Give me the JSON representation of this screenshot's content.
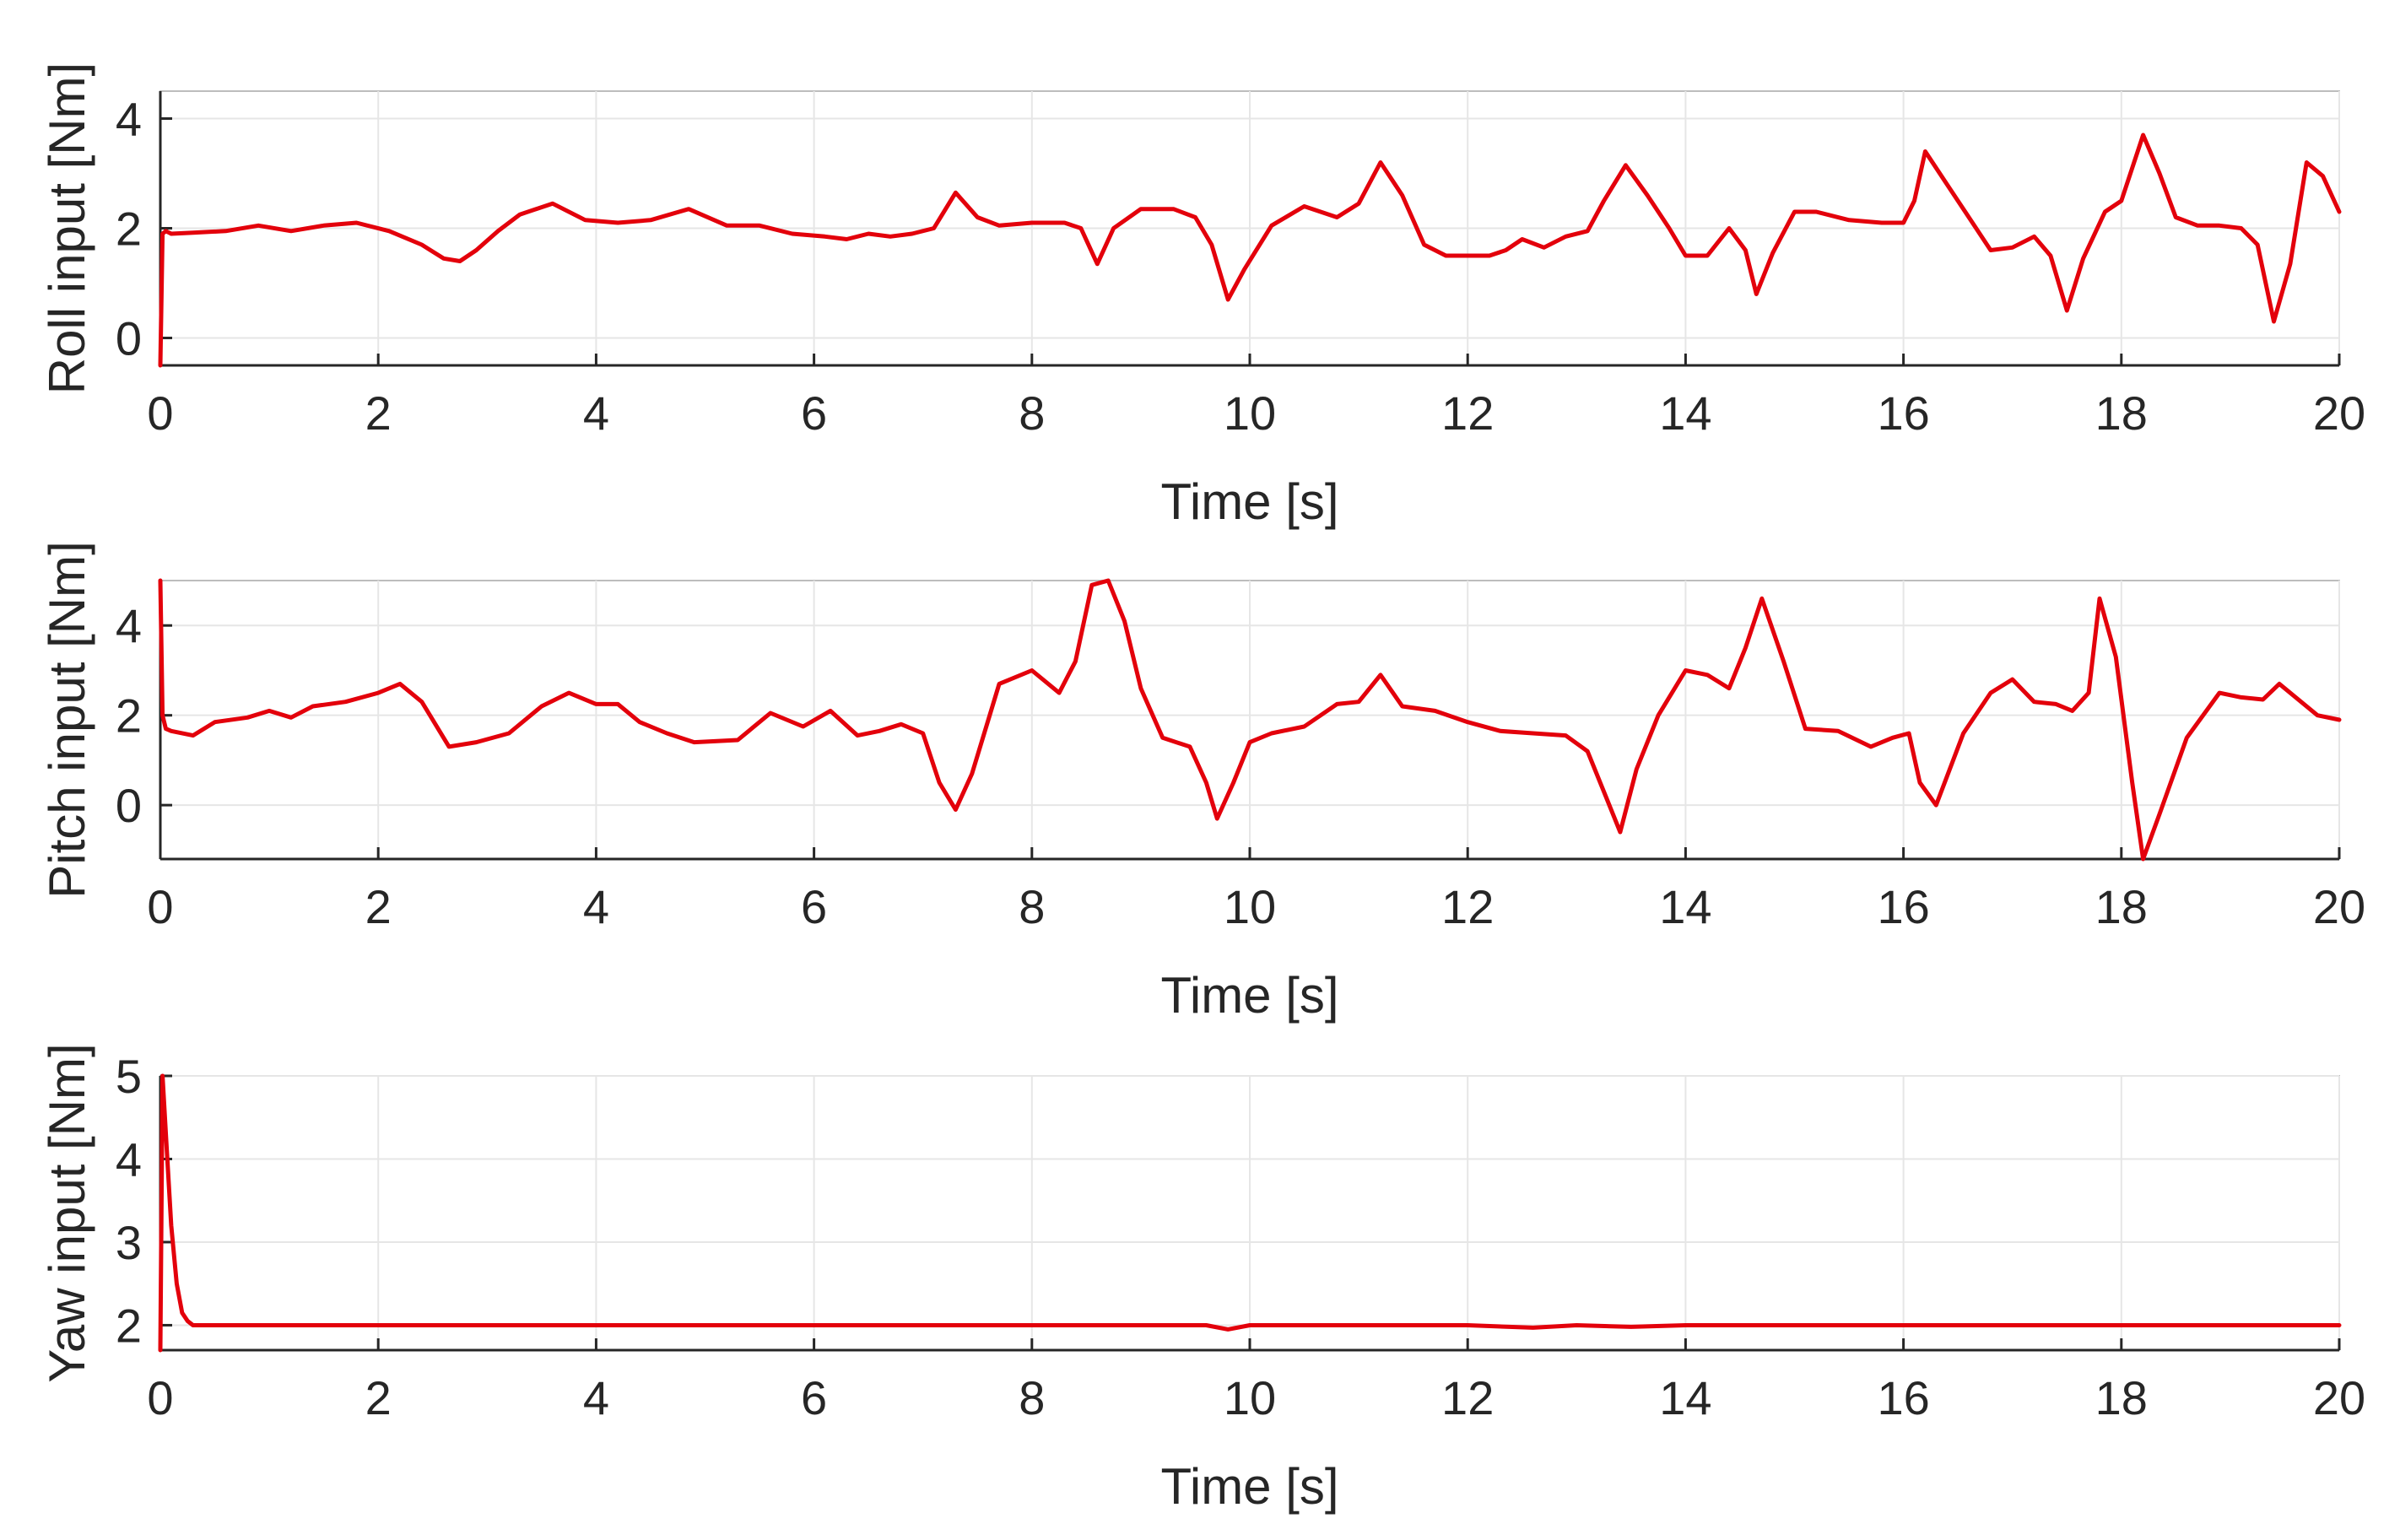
{
  "chart_data": [
    {
      "type": "line",
      "xlabel": "Time [s]",
      "ylabel": "Roll input [Nm]",
      "xlim": [
        0,
        20
      ],
      "ylim": [
        -0.5,
        4.5
      ],
      "xticks": [
        0,
        2,
        4,
        6,
        8,
        10,
        12,
        14,
        16,
        18,
        20
      ],
      "yticks": [
        0,
        2,
        4
      ],
      "grid": true,
      "color": "#e3000b",
      "series": [
        {
          "name": "Roll input",
          "x": [
            0,
            0.02,
            0.05,
            0.1,
            0.3,
            0.6,
            0.9,
            1.2,
            1.5,
            1.8,
            2.1,
            2.4,
            2.6,
            2.75,
            2.9,
            3.1,
            3.3,
            3.6,
            3.9,
            4.2,
            4.5,
            4.85,
            5.2,
            5.5,
            5.8,
            6.1,
            6.3,
            6.5,
            6.7,
            6.9,
            7.1,
            7.3,
            7.5,
            7.7,
            8.0,
            8.3,
            8.45,
            8.6,
            8.75,
            9.0,
            9.3,
            9.5,
            9.65,
            9.8,
            9.95,
            10.2,
            10.5,
            10.8,
            11.0,
            11.2,
            11.4,
            11.6,
            11.8,
            12.0,
            12.2,
            12.35,
            12.5,
            12.7,
            12.9,
            13.1,
            13.25,
            13.45,
            13.65,
            13.85,
            14.0,
            14.2,
            14.4,
            14.55,
            14.65,
            14.8,
            15.0,
            15.2,
            15.5,
            15.8,
            16.0,
            16.1,
            16.2,
            16.4,
            16.6,
            16.8,
            17.0,
            17.2,
            17.35,
            17.5,
            17.65,
            17.85,
            18.0,
            18.2,
            18.35,
            18.5,
            18.7,
            18.9,
            19.1,
            19.25,
            19.4,
            19.55,
            19.7,
            19.85,
            20.0
          ],
          "values": [
            -0.5,
            1.9,
            1.95,
            1.9,
            1.92,
            1.95,
            2.05,
            1.95,
            2.05,
            2.1,
            1.95,
            1.7,
            1.45,
            1.4,
            1.6,
            1.95,
            2.25,
            2.45,
            2.15,
            2.1,
            2.15,
            2.35,
            2.05,
            2.05,
            1.9,
            1.85,
            1.8,
            1.9,
            1.85,
            1.9,
            2.0,
            2.65,
            2.2,
            2.05,
            2.1,
            2.1,
            2.0,
            1.35,
            2.0,
            2.35,
            2.35,
            2.2,
            1.7,
            0.7,
            1.25,
            2.05,
            2.4,
            2.2,
            2.45,
            3.2,
            2.6,
            1.7,
            1.5,
            1.5,
            1.5,
            1.6,
            1.8,
            1.65,
            1.85,
            1.95,
            2.5,
            3.15,
            2.6,
            2.0,
            1.5,
            1.5,
            2.0,
            1.6,
            0.8,
            1.55,
            2.3,
            2.3,
            2.15,
            2.1,
            2.1,
            2.5,
            3.4,
            2.8,
            2.2,
            1.6,
            1.65,
            1.85,
            1.5,
            0.5,
            1.45,
            2.3,
            2.5,
            3.7,
            3.0,
            2.2,
            2.05,
            2.05,
            2.0,
            1.7,
            0.3,
            1.35,
            3.2,
            2.95,
            2.3
          ]
        }
      ]
    },
    {
      "type": "line",
      "xlabel": "Time [s]",
      "ylabel": "Pitch input [Nm]",
      "xlim": [
        0,
        20
      ],
      "ylim": [
        -1.2,
        5.0
      ],
      "xticks": [
        0,
        2,
        4,
        6,
        8,
        10,
        12,
        14,
        16,
        18,
        20
      ],
      "yticks": [
        0,
        2,
        4
      ],
      "grid": true,
      "color": "#e3000b",
      "series": [
        {
          "name": "Pitch input",
          "x": [
            0,
            0.02,
            0.05,
            0.1,
            0.3,
            0.5,
            0.8,
            1.0,
            1.2,
            1.4,
            1.7,
            2.0,
            2.2,
            2.4,
            2.65,
            2.9,
            3.2,
            3.5,
            3.75,
            4.0,
            4.2,
            4.4,
            4.65,
            4.9,
            5.3,
            5.6,
            5.9,
            6.15,
            6.4,
            6.6,
            6.8,
            7.0,
            7.15,
            7.3,
            7.45,
            7.7,
            8.0,
            8.25,
            8.4,
            8.55,
            8.7,
            8.85,
            9.0,
            9.2,
            9.45,
            9.6,
            9.7,
            9.85,
            10.0,
            10.2,
            10.5,
            10.8,
            11.0,
            11.2,
            11.4,
            11.7,
            12.0,
            12.3,
            12.6,
            12.9,
            13.1,
            13.25,
            13.4,
            13.55,
            13.75,
            14.0,
            14.2,
            14.4,
            14.55,
            14.7,
            14.9,
            15.1,
            15.4,
            15.7,
            15.9,
            16.05,
            16.15,
            16.3,
            16.55,
            16.8,
            17.0,
            17.2,
            17.4,
            17.55,
            17.7,
            17.8,
            17.95,
            18.1,
            18.2,
            18.35,
            18.6,
            18.9,
            19.1,
            19.3,
            19.45,
            19.6,
            19.8,
            20.0
          ],
          "values": [
            5.0,
            2.0,
            1.7,
            1.65,
            1.55,
            1.85,
            1.95,
            2.1,
            1.95,
            2.2,
            2.3,
            2.5,
            2.7,
            2.3,
            1.3,
            1.4,
            1.6,
            2.2,
            2.5,
            2.25,
            2.25,
            1.85,
            1.6,
            1.4,
            1.45,
            2.05,
            1.75,
            2.1,
            1.55,
            1.65,
            1.8,
            1.6,
            0.5,
            -0.1,
            0.7,
            2.7,
            3.0,
            2.5,
            3.2,
            4.9,
            5.0,
            4.1,
            2.6,
            1.5,
            1.3,
            0.5,
            -0.3,
            0.5,
            1.4,
            1.6,
            1.75,
            2.25,
            2.3,
            2.9,
            2.2,
            2.1,
            1.85,
            1.65,
            1.6,
            1.55,
            1.2,
            0.3,
            -0.6,
            0.8,
            2.0,
            3.0,
            2.9,
            2.6,
            3.5,
            4.6,
            3.2,
            1.7,
            1.65,
            1.3,
            1.5,
            1.6,
            0.5,
            0.0,
            1.6,
            2.5,
            2.8,
            2.3,
            2.25,
            2.1,
            2.5,
            4.6,
            3.3,
            0.5,
            -1.2,
            -0.2,
            1.5,
            2.5,
            2.4,
            2.35,
            2.7,
            2.4,
            2.0,
            1.9
          ]
        }
      ]
    },
    {
      "type": "line",
      "xlabel": "Time [s]",
      "ylabel": "Yaw input [Nm]",
      "xlim": [
        0,
        20
      ],
      "ylim": [
        1.7,
        5.0
      ],
      "xticks": [
        0,
        2,
        4,
        6,
        8,
        10,
        12,
        14,
        16,
        18,
        20
      ],
      "yticks": [
        2,
        3,
        4,
        5
      ],
      "grid": true,
      "color": "#e3000b",
      "series": [
        {
          "name": "Yaw input",
          "x": [
            0,
            0.02,
            0.06,
            0.1,
            0.15,
            0.2,
            0.25,
            0.3,
            0.4,
            1.0,
            2.0,
            4.0,
            6.0,
            8.0,
            9.6,
            9.8,
            10.0,
            11.0,
            12.0,
            12.6,
            13.0,
            13.5,
            14.0,
            16.0,
            18.0,
            20.0
          ],
          "values": [
            1.7,
            5.0,
            4.1,
            3.2,
            2.5,
            2.15,
            2.05,
            2.0,
            2.0,
            2.0,
            2.0,
            2.0,
            2.0,
            2.0,
            2.0,
            1.95,
            2.0,
            2.0,
            2.0,
            1.97,
            2.0,
            1.98,
            2.0,
            2.0,
            2.0,
            2.0
          ]
        }
      ]
    }
  ]
}
